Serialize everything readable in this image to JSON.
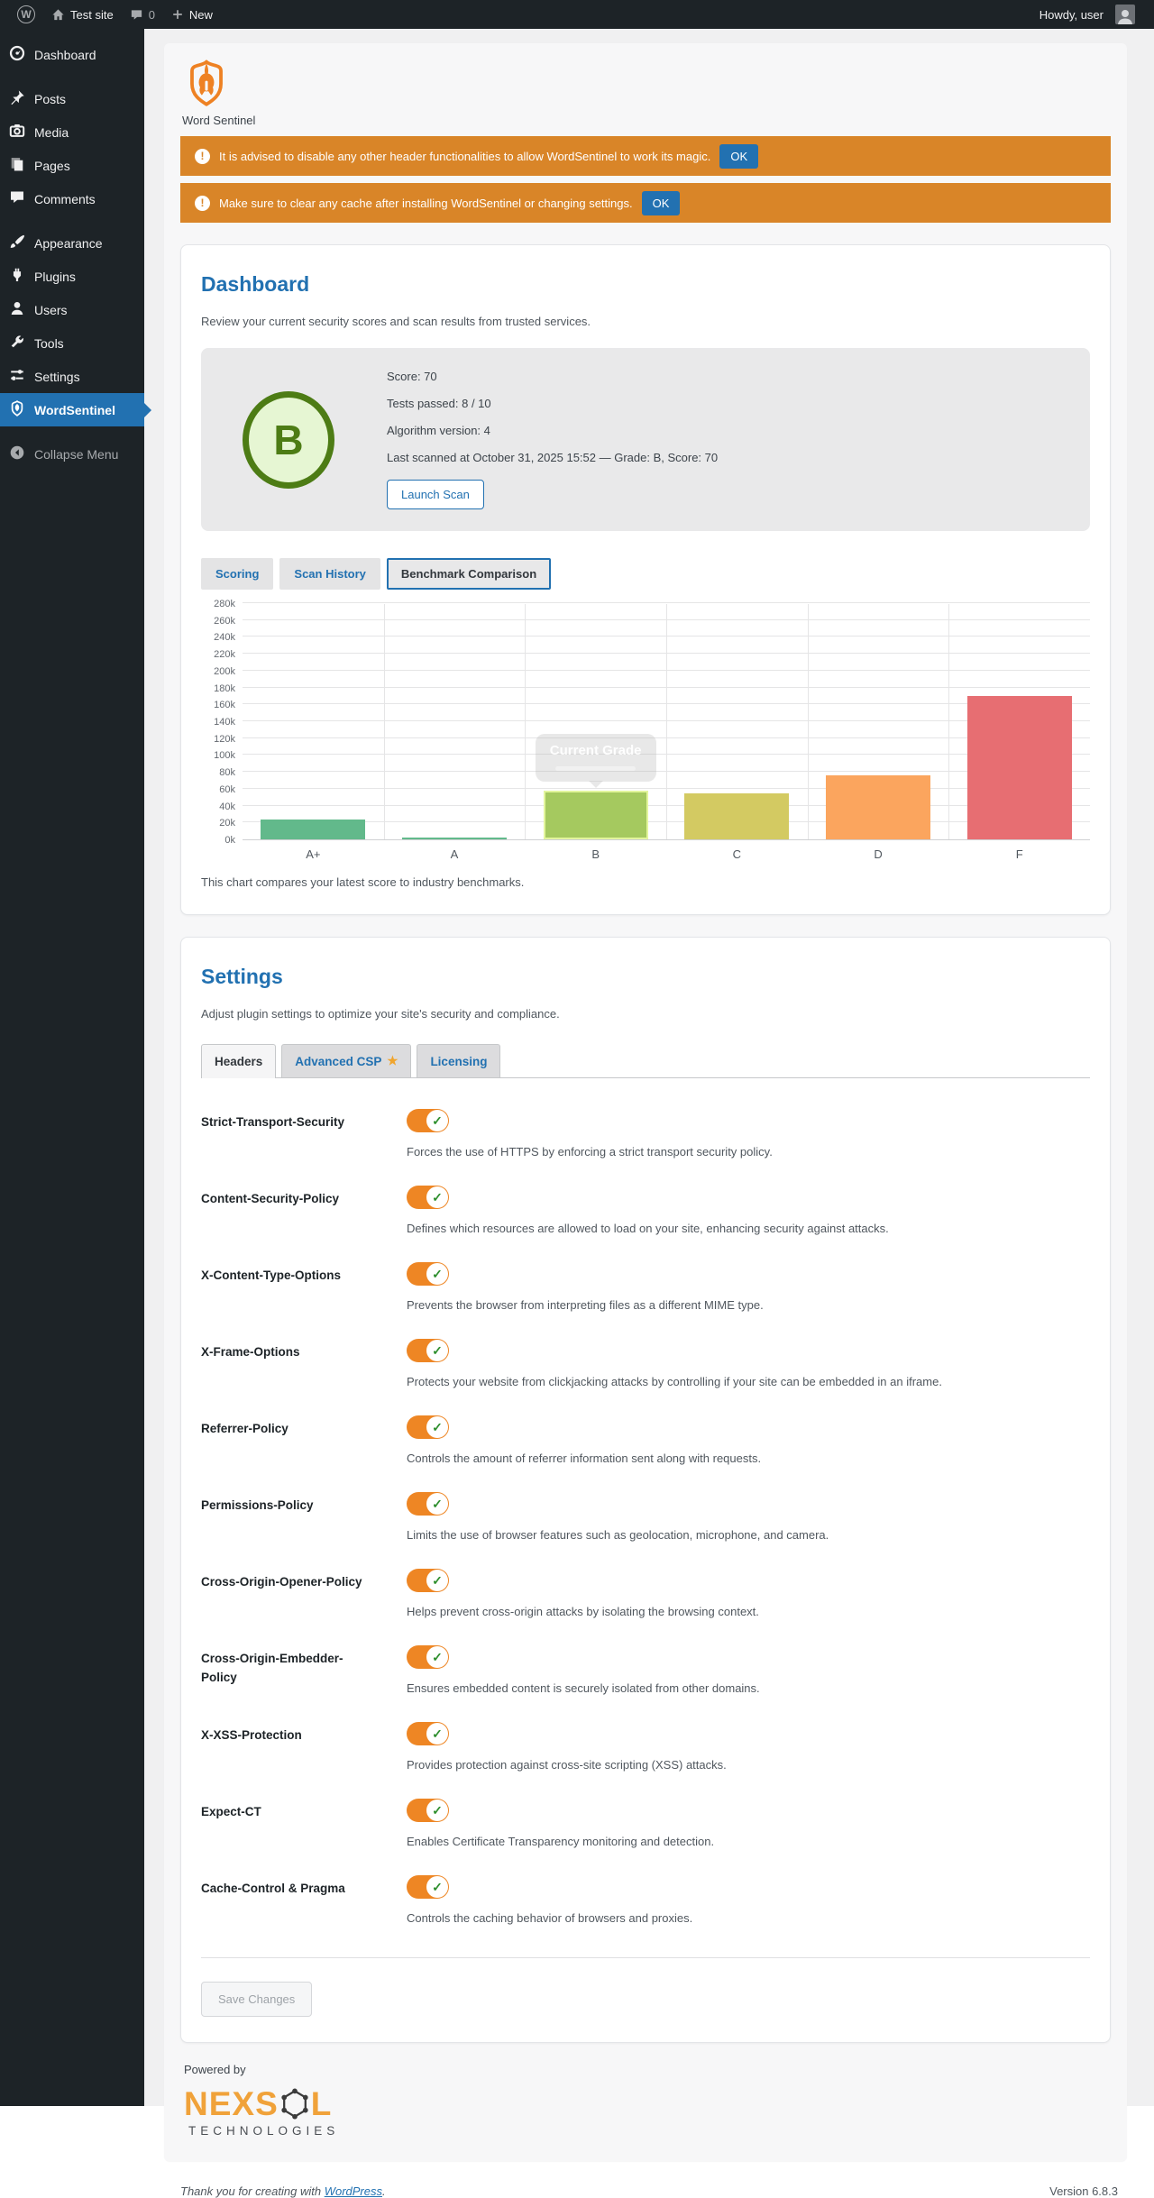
{
  "admin_bar": {
    "site_name": "Test site",
    "comments_count": "0",
    "new_label": "New",
    "howdy": "Howdy, user"
  },
  "sidebar": {
    "items": [
      {
        "label": "Dashboard",
        "icon": "dashboard-icon"
      },
      {
        "label": "Posts",
        "icon": "pushpin-icon",
        "gap_before": true
      },
      {
        "label": "Media",
        "icon": "media-icon"
      },
      {
        "label": "Pages",
        "icon": "pages-icon"
      },
      {
        "label": "Comments",
        "icon": "comment-icon"
      },
      {
        "label": "Appearance",
        "icon": "appearance-icon",
        "gap_before": true
      },
      {
        "label": "Plugins",
        "icon": "plugin-icon"
      },
      {
        "label": "Users",
        "icon": "users-icon"
      },
      {
        "label": "Tools",
        "icon": "tools-icon"
      },
      {
        "label": "Settings",
        "icon": "settings-icon"
      },
      {
        "label": "WordSentinel",
        "icon": "wordsentinel-icon",
        "active": true
      },
      {
        "label": "Collapse Menu",
        "icon": "collapse-icon",
        "muted": true,
        "gap_before": true
      }
    ]
  },
  "plugin": {
    "logo_title": "Word Sentinel",
    "notices": [
      {
        "icon": "alert-icon",
        "text": "It is advised to disable any other header functionalities to allow WordSentinel to work its magic.",
        "ok": "OK"
      },
      {
        "icon": "alert-icon",
        "text": "Make sure to clear any cache after installing WordSentinel or changing settings.",
        "ok": "OK"
      }
    ],
    "dashboard": {
      "title": "Dashboard",
      "description": "Review your current security scores and scan results from trusted services.",
      "grade": "B",
      "score_line": "Score: 70",
      "tests_line": "Tests passed: 8 / 10",
      "algorithm_line": "Algorithm version: 4",
      "last_scanned_line": "Last scanned at October 31, 2025 15:52 — Grade: B, Score: 70",
      "launch_button": "Launch Scan",
      "tabs": [
        {
          "label": "Scoring"
        },
        {
          "label": "Scan History"
        },
        {
          "label": "Benchmark Comparison",
          "active": true
        }
      ],
      "chart_caption": "This chart compares your latest score to industry benchmarks."
    },
    "settings": {
      "title": "Settings",
      "description": "Adjust plugin settings to optimize your site's security and compliance.",
      "tabs": [
        {
          "label": "Headers",
          "active": true
        },
        {
          "label": "Advanced CSP",
          "star": "★"
        },
        {
          "label": "Licensing"
        }
      ],
      "rows": [
        {
          "name": "Strict-Transport-Security",
          "description": "Forces the use of HTTPS by enforcing a strict transport security policy.",
          "enabled": true
        },
        {
          "name": "Content-Security-Policy",
          "description": "Defines which resources are allowed to load on your site, enhancing security against attacks.",
          "enabled": true
        },
        {
          "name": "X-Content-Type-Options",
          "description": "Prevents the browser from interpreting files as a different MIME type.",
          "enabled": true
        },
        {
          "name": "X-Frame-Options",
          "description": "Protects your website from clickjacking attacks by controlling if your site can be embedded in an iframe.",
          "enabled": true
        },
        {
          "name": "Referrer-Policy",
          "description": "Controls the amount of referrer information sent along with requests.",
          "enabled": true
        },
        {
          "name": "Permissions-Policy",
          "description": "Limits the use of browser features such as geolocation, microphone, and camera.",
          "enabled": true
        },
        {
          "name": "Cross-Origin-Opener-Policy",
          "description": "Helps prevent cross-origin attacks by isolating the browsing context.",
          "enabled": true
        },
        {
          "name": "Cross-Origin-Embedder-Policy",
          "description": "Ensures embedded content is securely isolated from other domains.",
          "enabled": true
        },
        {
          "name": "X-XSS-Protection",
          "description": "Provides protection against cross-site scripting (XSS) attacks.",
          "enabled": true
        },
        {
          "name": "Expect-CT",
          "description": "Enables Certificate Transparency monitoring and detection.",
          "enabled": true
        },
        {
          "name": "Cache-Control & Pragma",
          "description": "Controls the caching behavior of browsers and proxies.",
          "enabled": true
        }
      ],
      "save_button": "Save Changes"
    },
    "powered_by": "Powered by",
    "brand": {
      "name_left": "NEXS",
      "name_right": "L",
      "subtitle": "TECHNOLOGIES"
    }
  },
  "chart_data": {
    "type": "bar",
    "title": "",
    "xlabel": "",
    "ylabel": "",
    "categories": [
      "A+",
      "A",
      "B",
      "C",
      "D",
      "F"
    ],
    "values": [
      23000,
      2000,
      58000,
      55000,
      76000,
      170000
    ],
    "colors": [
      "#62b98b",
      "#62b98b",
      "#a5c95f",
      "#d3ca62",
      "#fba55e",
      "#e76e72"
    ],
    "highlight_index": 2,
    "tooltip": {
      "title": "Current Grade"
    },
    "ylim": [
      0,
      280000
    ],
    "ytick_step": 20000,
    "ytick_suffix": "k",
    "grid": true,
    "legend": "none"
  },
  "footer": {
    "thanks_prefix": "Thank you for creating with ",
    "link": "WordPress",
    "suffix": ".",
    "version": "Version 6.8.3"
  }
}
